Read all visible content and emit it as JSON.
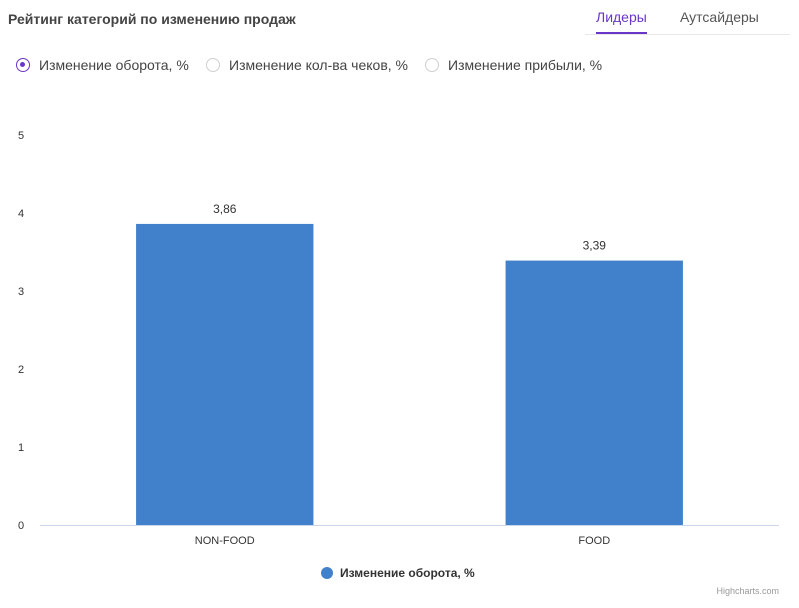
{
  "header": {
    "title": "Рейтинг категорий по изменению продаж"
  },
  "tabs": [
    {
      "label": "Лидеры",
      "active": true
    },
    {
      "label": "Аутсайдеры",
      "active": false
    }
  ],
  "metric_options": [
    {
      "label": "Изменение оборота, %",
      "selected": true
    },
    {
      "label": "Изменение кол-ва чеков, %",
      "selected": false
    },
    {
      "label": "Изменение прибыли, %",
      "selected": false
    }
  ],
  "colors": {
    "accent": "#6a36c9",
    "bar": "#4181cb"
  },
  "chart_data": {
    "type": "bar",
    "categories": [
      "NON-FOOD",
      "FOOD"
    ],
    "series": [
      {
        "name": "Изменение оборота, %",
        "values": [
          3.86,
          3.39
        ]
      }
    ],
    "data_labels": [
      "3,86",
      "3,39"
    ],
    "ylim": [
      0,
      5
    ],
    "yticks": [
      0,
      1,
      2,
      3,
      4,
      5
    ],
    "grid": false,
    "legend": "bottom-center"
  },
  "credits": "Highcharts.com"
}
